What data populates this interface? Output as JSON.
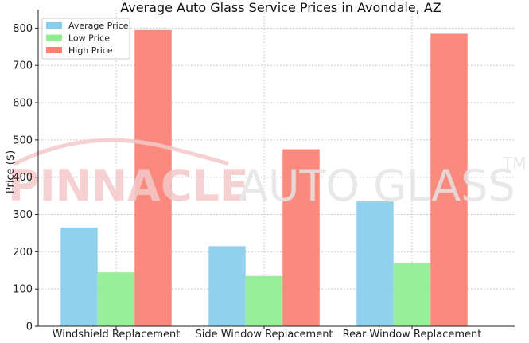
{
  "chart_data": {
    "type": "bar",
    "title": "Average Auto Glass Service Prices in Avondale, AZ",
    "xlabel": "",
    "ylabel": "Price ($)",
    "ylim": [
      0,
      850
    ],
    "yticks": [
      0,
      100,
      200,
      300,
      400,
      500,
      600,
      700,
      800
    ],
    "grid": true,
    "legend_position": "top-left",
    "categories": [
      "Windshield Replacement",
      "Side Window Replacement",
      "Rear Window Replacement"
    ],
    "series": [
      {
        "name": "Average Price",
        "color": "#87ceeb",
        "values": [
          265,
          215,
          335
        ]
      },
      {
        "name": "Low Price",
        "color": "#90ee90",
        "values": [
          145,
          135,
          170
        ]
      },
      {
        "name": "High Price",
        "color": "#fa8072",
        "values": [
          795,
          475,
          785
        ]
      }
    ]
  },
  "watermark": {
    "brand_red": "PINNACLE",
    "brand_grey": "AUTO GLASS",
    "trademark": "TM"
  }
}
